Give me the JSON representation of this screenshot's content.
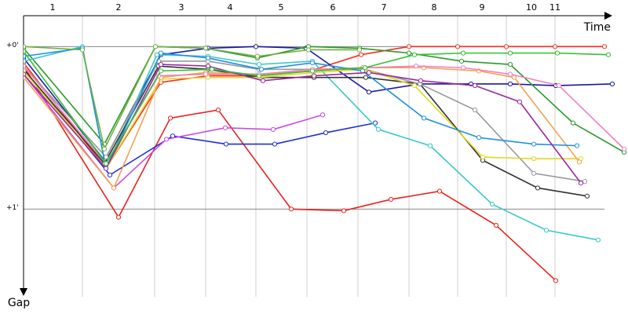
{
  "chart_data": {
    "type": "line",
    "x_label": "Time",
    "y_label": "Gap",
    "xlim": [
      0,
      770
    ],
    "ylim": [
      -0.19,
      1.52
    ],
    "y_inverted": true,
    "xticks": [
      {
        "value": 37,
        "label": "1"
      },
      {
        "value": 121,
        "label": "2"
      },
      {
        "value": 201,
        "label": "3"
      },
      {
        "value": 263,
        "label": "4"
      },
      {
        "value": 328,
        "label": "5"
      },
      {
        "value": 394,
        "label": "6"
      },
      {
        "value": 459,
        "label": "7"
      },
      {
        "value": 523,
        "label": "8"
      },
      {
        "value": 584,
        "label": "9"
      },
      {
        "value": 647,
        "label": "10"
      },
      {
        "value": 677,
        "label": "11"
      }
    ],
    "lap_boundaries": [
      75,
      167,
      232,
      296,
      361,
      426,
      491,
      553,
      615,
      677
    ],
    "yticks": [
      {
        "value": 0,
        "label": "+0'"
      },
      {
        "value": 1,
        "label": "+1'"
      }
    ],
    "grid": true,
    "series": [
      {
        "color": "#e8221c",
        "x": [
          0,
          121,
          187,
          248,
          341,
          408,
          468,
          530,
          602,
          678
        ],
        "values": [
          0.12,
          1.05,
          0.44,
          0.39,
          1.0,
          1.01,
          0.94,
          0.89,
          1.1,
          1.44
        ]
      },
      {
        "color": "#ff2a1a",
        "x": [
          0,
          105,
          175,
          235,
          300,
          365,
          430,
          491,
          553,
          615,
          677,
          740
        ],
        "values": [
          0.1,
          0.75,
          0.22,
          0.18,
          0.18,
          0.15,
          0.05,
          0,
          0,
          0,
          0,
          0
        ]
      },
      {
        "color": "#1f2ed6",
        "x": [
          0,
          110,
          190,
          258,
          320,
          385,
          448
        ],
        "values": [
          0.14,
          0.79,
          0.55,
          0.6,
          0.6,
          0.53,
          0.47
        ]
      },
      {
        "color": "#c84be8",
        "x": [
          0,
          115,
          182,
          257,
          318,
          381
        ],
        "values": [
          0.17,
          0.87,
          0.57,
          0.5,
          0.51,
          0.42
        ]
      },
      {
        "color": "#1a1aa0",
        "x": [
          0,
          103,
          175,
          235,
          296,
          360,
          440,
          505,
          570,
          620,
          678,
          750
        ],
        "values": [
          0.07,
          0.7,
          0.05,
          0.01,
          0,
          0.01,
          0.28,
          0.23,
          0.23,
          0.23,
          0.24,
          0.23
        ]
      },
      {
        "color": "#2a9a2a",
        "x": [
          0,
          103,
          168,
          232,
          298,
          363,
          428,
          491,
          558,
          620,
          700,
          765
        ],
        "values": [
          0.01,
          0.6,
          0,
          0.01,
          0.07,
          0,
          0.01,
          0.04,
          0.09,
          0.11,
          0.47,
          0.65
        ]
      },
      {
        "color": "#3cc8c8",
        "x": [
          0,
          75,
          105,
          170,
          235,
          300,
          368,
          452,
          518,
          597,
          666,
          732
        ],
        "values": [
          0.09,
          0,
          0.75,
          0.05,
          0.06,
          0.11,
          0.09,
          0.51,
          0.61,
          0.97,
          1.13,
          1.19
        ]
      },
      {
        "color": "#333333",
        "x": [
          0,
          103,
          172,
          235,
          300,
          370,
          436,
          505,
          585,
          655,
          718
        ],
        "values": [
          0.14,
          0.72,
          0.12,
          0.14,
          0.19,
          0.19,
          0.19,
          0.23,
          0.7,
          0.87,
          0.92
        ]
      },
      {
        "color": "#999999",
        "x": [
          0,
          105,
          172,
          235,
          300,
          368,
          435,
          505,
          575,
          650,
          715
        ],
        "values": [
          0.12,
          0.68,
          0.09,
          0.09,
          0.14,
          0.14,
          0.14,
          0.23,
          0.39,
          0.78,
          0.83
        ]
      },
      {
        "color": "#e0d820",
        "x": [
          0,
          105,
          175,
          235,
          300,
          368,
          435,
          498,
          585,
          650,
          710
        ],
        "values": [
          0.15,
          0.75,
          0.2,
          0.19,
          0.19,
          0.16,
          0.14,
          0.24,
          0.68,
          0.69,
          0.69
        ]
      },
      {
        "color": "#f5a050",
        "x": [
          0,
          115,
          175,
          232,
          300,
          370,
          432,
          510,
          580,
          625,
          708
        ],
        "values": [
          0.19,
          0.87,
          0.19,
          0.16,
          0.17,
          0.15,
          0.13,
          0.13,
          0.15,
          0.19,
          0.71
        ]
      },
      {
        "color": "#f080c0",
        "x": [
          0,
          105,
          172,
          232,
          300,
          368,
          435,
          500,
          560,
          620,
          682,
          765
        ],
        "values": [
          0.12,
          0.72,
          0.18,
          0.17,
          0.17,
          0.14,
          0.13,
          0.12,
          0.13,
          0.17,
          0.24,
          0.63
        ]
      },
      {
        "color": "#2090e0",
        "x": [
          0,
          75,
          105,
          175,
          235,
          303,
          368,
          432,
          510,
          580,
          650,
          705
        ],
        "values": [
          0.06,
          0.01,
          0.75,
          0.04,
          0.07,
          0.14,
          0.1,
          0.15,
          0.44,
          0.56,
          0.6,
          0.61
        ]
      },
      {
        "color": "#9a2aa0",
        "x": [
          0,
          105,
          175,
          235,
          305,
          370,
          440,
          506,
          575,
          632,
          710
        ],
        "values": [
          0.17,
          0.75,
          0.11,
          0.12,
          0.21,
          0.18,
          0.16,
          0.21,
          0.24,
          0.34,
          0.84
        ]
      },
      {
        "color": "#30c030",
        "x": [
          0,
          105,
          175,
          240,
          300,
          368,
          435,
          498,
          560,
          620,
          680,
          745
        ],
        "values": [
          0.03,
          0.72,
          0.15,
          0.14,
          0.18,
          0.15,
          0.13,
          0.05,
          0.04,
          0.04,
          0.04,
          0.05
        ]
      },
      {
        "color": "#70b040",
        "x": [
          0,
          75,
          103,
          168,
          232,
          298,
          363,
          428
        ],
        "values": [
          0,
          0.02,
          0.63,
          0,
          0.01,
          0.06,
          0.02,
          0.02
        ]
      }
    ]
  }
}
